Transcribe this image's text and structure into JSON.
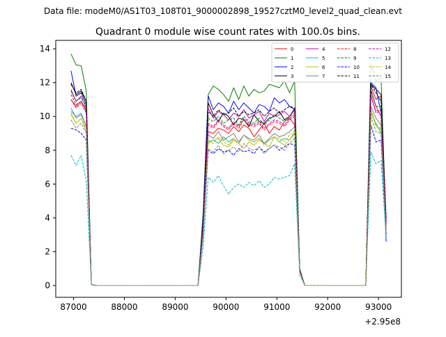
{
  "suptitle": "Data file: modeM0/AS1T03_108T01_9000002898_19527cztM0_level2_quad_clean.evt",
  "chart_data": {
    "type": "line",
    "title": "Quadrant 0 module wise count rates with 100.0s bins.",
    "xlabel": "",
    "ylabel": "",
    "x_offset_label": "+2.95e8",
    "xlim": [
      86650,
      93450
    ],
    "ylim": [
      -0.7,
      14.5
    ],
    "xticks": [
      87000,
      88000,
      89000,
      90000,
      91000,
      92000,
      93000
    ],
    "yticks": [
      0,
      2,
      4,
      6,
      8,
      10,
      12,
      14
    ],
    "legend_position": "top-right",
    "x": [
      86950,
      87050,
      87150,
      87250,
      87350,
      87450,
      89350,
      89450,
      89550,
      89650,
      89750,
      89850,
      89950,
      90050,
      90150,
      90250,
      90350,
      90450,
      90550,
      90650,
      90750,
      90850,
      90950,
      91050,
      91150,
      91250,
      91350,
      91450,
      91550,
      91650,
      91750,
      92650,
      92750,
      92850,
      92950,
      93050,
      93150
    ],
    "series": [
      {
        "name": "0",
        "color": "#ff0000",
        "dash": "solid",
        "values": [
          11.0,
          10.6,
          10.9,
          10.4,
          0.05,
          0,
          0,
          0,
          3.4,
          9.1,
          9.0,
          9.3,
          9.2,
          9.0,
          9.4,
          9.1,
          9.5,
          9.3,
          8.8,
          9.2,
          9.6,
          9.0,
          9.4,
          9.2,
          9.7,
          9.9,
          9.5,
          0.9,
          0,
          0,
          0,
          0,
          0,
          11.8,
          11.0,
          11.2,
          4.0
        ]
      },
      {
        "name": "1",
        "color": "#008000",
        "dash": "solid",
        "values": [
          13.7,
          13.05,
          13.0,
          11.5,
          0.05,
          0,
          0,
          0,
          4.3,
          11.3,
          11.8,
          11.6,
          11.3,
          10.9,
          11.7,
          11.0,
          11.8,
          11.2,
          11.6,
          11.4,
          11.5,
          11.9,
          11.8,
          11.7,
          12.1,
          11.4,
          12.1,
          1.0,
          0,
          0,
          0,
          0,
          0,
          13.1,
          12.1,
          12.3,
          3.2
        ]
      },
      {
        "name": "2",
        "color": "#0000ff",
        "dash": "solid",
        "values": [
          12.7,
          11.2,
          11.4,
          10.7,
          0.05,
          0,
          0,
          0,
          4.1,
          11.2,
          10.4,
          10.8,
          10.6,
          10.2,
          10.9,
          10.4,
          10.8,
          10.5,
          10.2,
          10.7,
          10.6,
          10.3,
          11.1,
          10.8,
          11.0,
          10.6,
          10.4,
          0.9,
          0,
          0,
          0,
          0,
          0,
          12.0,
          11.7,
          10.2,
          2.6
        ]
      },
      {
        "name": "3",
        "color": "#000000",
        "dash": "solid",
        "values": [
          12.0,
          11.3,
          11.5,
          10.9,
          0.05,
          0,
          0,
          0,
          3.8,
          10.8,
          10.1,
          9.7,
          10.2,
          10.0,
          9.5,
          9.9,
          9.8,
          9.4,
          10.1,
          9.7,
          9.6,
          9.9,
          10.0,
          10.3,
          9.8,
          10.0,
          10.4,
          0.9,
          0,
          0,
          0,
          0,
          0,
          11.9,
          11.6,
          11.3,
          3.7
        ]
      },
      {
        "name": "4",
        "color": "#bf00bf",
        "dash": "solid",
        "values": [
          11.6,
          10.9,
          11.2,
          10.5,
          0.05,
          0,
          0,
          0,
          3.6,
          10.5,
          9.9,
          10.3,
          10.1,
          9.8,
          10.2,
          10.0,
          10.4,
          9.9,
          10.1,
          10.3,
          9.7,
          10.2,
          10.0,
          10.1,
          10.3,
          10.0,
          10.5,
          0.9,
          0,
          0,
          0,
          0,
          0,
          11.6,
          10.6,
          10.0,
          3.5
        ]
      },
      {
        "name": "5",
        "color": "#00bfbf",
        "dash": "solid",
        "values": [
          10.3,
          10.0,
          10.2,
          9.4,
          0.05,
          0,
          0,
          0,
          3.1,
          8.5,
          8.6,
          8.4,
          8.8,
          8.5,
          8.7,
          8.4,
          8.9,
          8.6,
          8.5,
          8.7,
          8.4,
          8.6,
          8.8,
          8.5,
          8.7,
          8.6,
          9.0,
          0.8,
          0,
          0,
          0,
          0,
          0,
          10.2,
          9.6,
          9.0,
          3.1
        ]
      },
      {
        "name": "6",
        "color": "#bfbf00",
        "dash": "solid",
        "values": [
          10.1,
          9.6,
          9.9,
          9.1,
          0.05,
          0,
          0,
          0,
          3.0,
          8.4,
          8.6,
          8.7,
          8.3,
          8.2,
          8.6,
          8.4,
          8.1,
          8.5,
          8.3,
          8.6,
          8.4,
          8.2,
          8.8,
          8.5,
          8.3,
          8.6,
          9.1,
          0.8,
          0,
          0,
          0,
          0,
          0,
          10.4,
          9.5,
          9.2,
          3.2
        ]
      },
      {
        "name": "7",
        "color": "#808080",
        "dash": "solid",
        "values": [
          10.5,
          9.9,
          10.1,
          9.4,
          0.05,
          0,
          0,
          0,
          3.2,
          8.9,
          8.7,
          9.1,
          8.6,
          8.8,
          9.0,
          8.5,
          8.9,
          8.7,
          8.6,
          8.9,
          8.4,
          8.7,
          9.0,
          8.8,
          8.9,
          9.1,
          9.4,
          0.8,
          0,
          0,
          0,
          0,
          0,
          10.6,
          9.9,
          9.5,
          3.3
        ]
      },
      {
        "name": "8",
        "color": "#ff0000",
        "dash": "dashed",
        "values": [
          11.3,
          10.7,
          10.9,
          10.3,
          0.05,
          0,
          0,
          0,
          3.5,
          9.5,
          9.3,
          9.7,
          9.4,
          9.2,
          9.6,
          9.3,
          9.8,
          9.5,
          9.4,
          9.6,
          9.2,
          9.5,
          9.7,
          9.6,
          9.4,
          9.8,
          10.0,
          0.9,
          0,
          0,
          0,
          0,
          0,
          11.3,
          10.3,
          10.4,
          3.6
        ]
      },
      {
        "name": "9",
        "color": "#008000",
        "dash": "dashed",
        "values": [
          11.5,
          10.9,
          11.1,
          10.6,
          0.05,
          0,
          0,
          0,
          3.6,
          9.9,
          9.7,
          10.0,
          9.6,
          9.8,
          9.9,
          9.5,
          10.0,
          9.7,
          9.6,
          9.9,
          9.5,
          9.8,
          10.1,
          9.9,
          9.7,
          10.0,
          10.2,
          0.9,
          0,
          0,
          0,
          0,
          0,
          11.5,
          10.6,
          10.6,
          3.7
        ]
      },
      {
        "name": "10",
        "color": "#0000ff",
        "dash": "dashed",
        "values": [
          9.3,
          9.2,
          9.0,
          8.6,
          0.05,
          0,
          0,
          0,
          2.9,
          8.0,
          7.8,
          8.1,
          7.9,
          8.0,
          7.7,
          8.1,
          7.9,
          8.0,
          7.8,
          8.2,
          7.9,
          8.1,
          8.3,
          8.0,
          8.2,
          8.4,
          8.3,
          0.8,
          0,
          0,
          0,
          0,
          0,
          9.5,
          8.5,
          8.6,
          3.0
        ]
      },
      {
        "name": "11",
        "color": "#000000",
        "dash": "dashed",
        "values": [
          11.9,
          11.4,
          11.6,
          10.9,
          0.05,
          0,
          0,
          0,
          3.7,
          10.3,
          10.0,
          10.4,
          10.1,
          10.2,
          10.5,
          10.0,
          10.3,
          10.1,
          10.2,
          10.4,
          10.0,
          10.3,
          10.5,
          10.2,
          10.4,
          10.6,
          10.5,
          0.9,
          0,
          0,
          0,
          0,
          0,
          11.9,
          11.4,
          10.9,
          3.8
        ]
      },
      {
        "name": "12",
        "color": "#bf00bf",
        "dash": "dashed",
        "values": [
          11.0,
          10.5,
          10.8,
          10.2,
          0.05,
          0,
          0,
          0,
          3.4,
          9.6,
          9.4,
          9.8,
          9.5,
          9.3,
          9.7,
          9.4,
          9.9,
          9.6,
          9.5,
          9.7,
          9.3,
          9.6,
          9.8,
          9.7,
          9.5,
          9.9,
          10.1,
          0.9,
          0,
          0,
          0,
          0,
          0,
          11.2,
          10.2,
          10.3,
          3.5
        ]
      },
      {
        "name": "13",
        "color": "#00bfbf",
        "dash": "dashed",
        "values": [
          7.7,
          7.1,
          7.7,
          6.2,
          0.05,
          0,
          0,
          0,
          2.3,
          6.4,
          6.1,
          6.5,
          5.9,
          5.4,
          5.8,
          6.0,
          5.8,
          6.1,
          5.9,
          6.2,
          5.8,
          6.0,
          6.4,
          6.3,
          6.4,
          6.5,
          7.2,
          0.6,
          0,
          0,
          0,
          0,
          0,
          7.9,
          7.2,
          7.4,
          2.8
        ]
      },
      {
        "name": "14",
        "color": "#bfbf00",
        "dash": "dashed",
        "values": [
          10.2,
          9.6,
          9.9,
          9.3,
          0.05,
          0,
          0,
          0,
          3.1,
          8.6,
          8.4,
          8.8,
          8.5,
          8.3,
          8.7,
          8.4,
          8.9,
          8.6,
          8.5,
          8.7,
          8.3,
          8.6,
          8.8,
          8.7,
          8.5,
          8.9,
          9.2,
          0.8,
          0,
          0,
          0,
          0,
          0,
          10.3,
          9.4,
          9.3,
          3.2
        ]
      },
      {
        "name": "15",
        "color": "#808080",
        "dash": "dashed",
        "values": [
          9.8,
          9.3,
          9.6,
          9.0,
          0.05,
          0,
          0,
          0,
          3.0,
          8.1,
          7.9,
          8.3,
          7.8,
          8.0,
          8.2,
          7.9,
          8.4,
          8.1,
          8.0,
          8.2,
          7.8,
          8.1,
          8.3,
          8.2,
          8.0,
          8.4,
          8.7,
          0.8,
          0,
          0,
          0,
          0,
          0,
          10.0,
          9.1,
          9.0,
          3.1
        ]
      }
    ]
  }
}
